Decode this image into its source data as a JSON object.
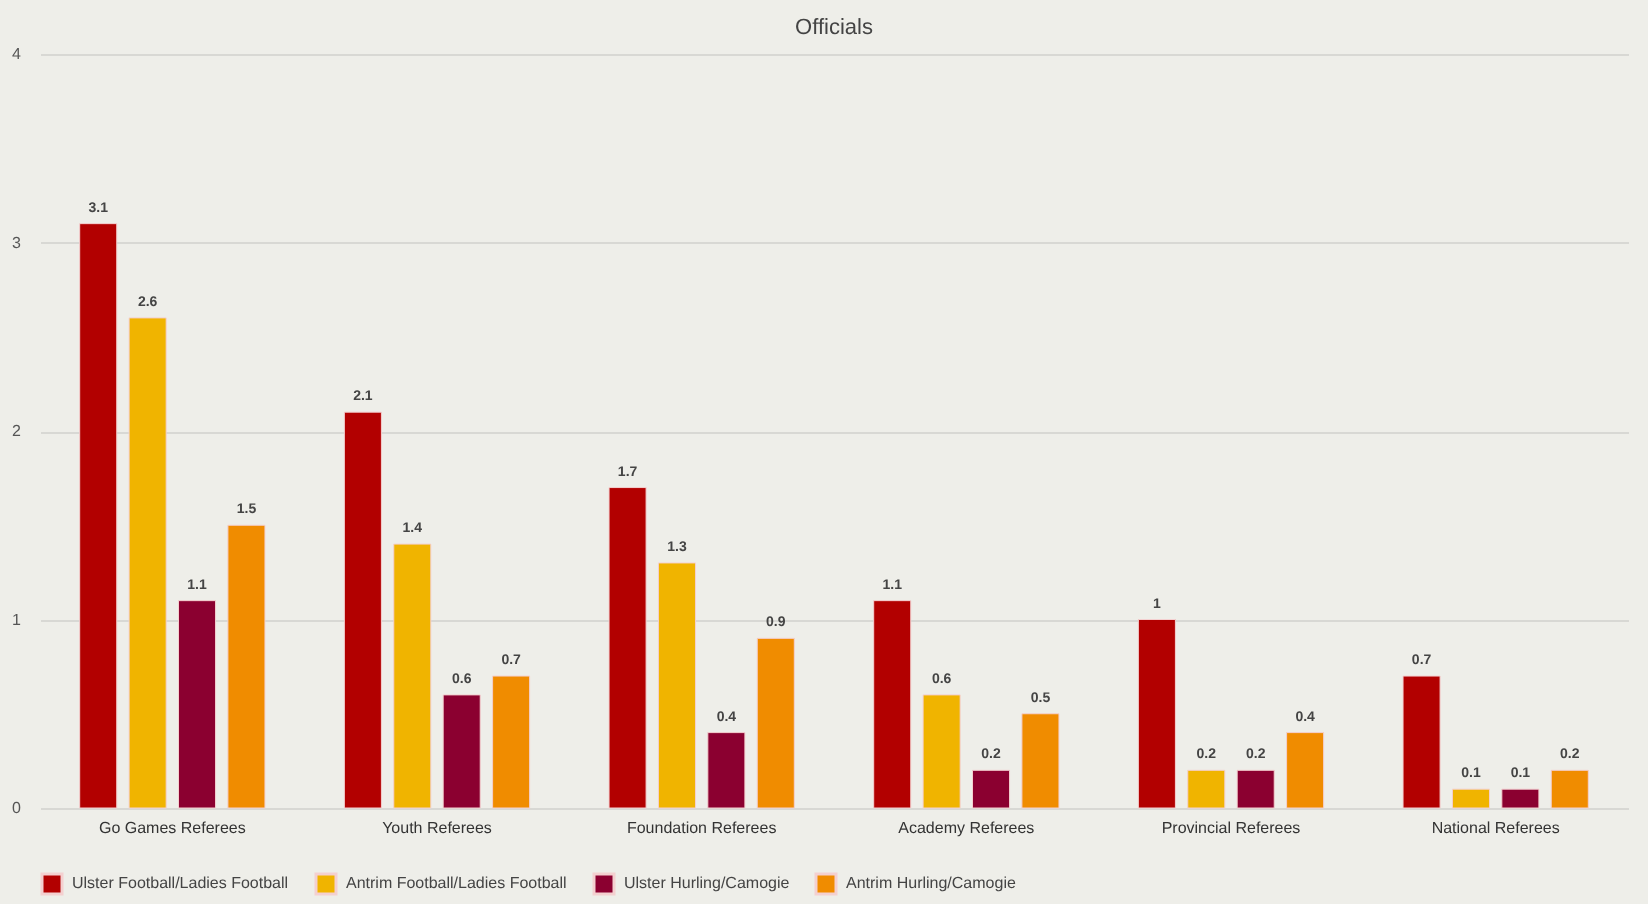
{
  "chart_data": {
    "type": "bar",
    "title": "Officials",
    "categories": [
      "Go Games Referees",
      "Youth Referees",
      "Foundation Referees",
      "Academy Referees",
      "Provincial Referees",
      "National Referees"
    ],
    "series": [
      {
        "name": "Ulster Football/Ladies Football",
        "color": "#b20000",
        "values": [
          3.1,
          2.1,
          1.7,
          1.1,
          1,
          0.7
        ]
      },
      {
        "name": "Antrim Football/Ladies Football",
        "color": "#f0b400",
        "values": [
          2.6,
          1.4,
          1.3,
          0.6,
          0.2,
          0.1
        ]
      },
      {
        "name": "Ulster Hurling/Camogie",
        "color": "#8b0030",
        "values": [
          1.1,
          0.6,
          0.4,
          0.2,
          0.2,
          0.1
        ]
      },
      {
        "name": "Antrim Hurling/Camogie",
        "color": "#f08c00",
        "values": [
          1.5,
          0.7,
          0.9,
          0.5,
          0.4,
          0.2
        ]
      }
    ],
    "ylim": [
      0,
      4
    ],
    "yticks": [
      0,
      1,
      2,
      3,
      4
    ],
    "grid": "y",
    "legend": "bottom",
    "data_labels": true
  }
}
